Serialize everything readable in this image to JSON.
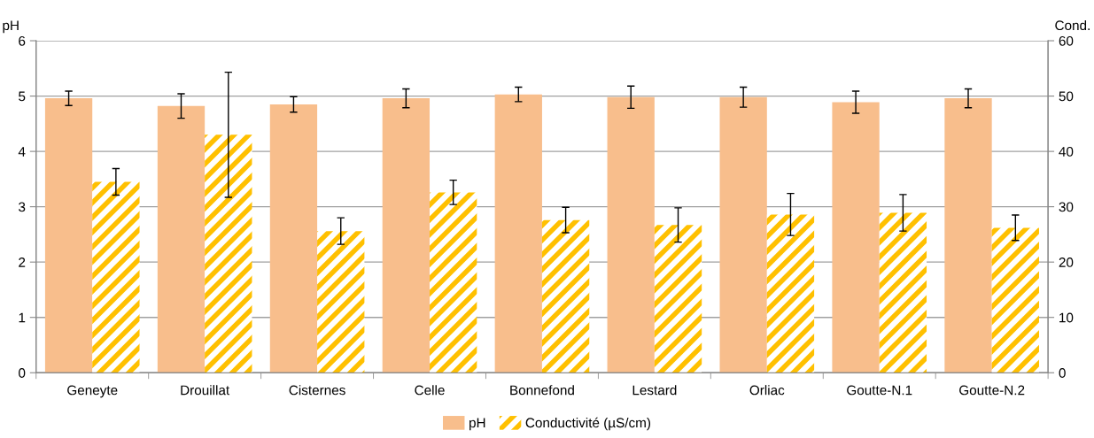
{
  "chart_data": {
    "type": "bar",
    "categories": [
      "Geneyte",
      "Drouillat",
      "Cisternes",
      "Celle",
      "Bonnefond",
      "Lestard",
      "Orliac",
      "Goutte-N.1",
      "Goutte-N.2"
    ],
    "ylabel": "pH",
    "y2label": "Cond.",
    "series": [
      {
        "name": "pH",
        "color": "#f8be8c",
        "values": [
          4.96,
          4.82,
          4.85,
          4.96,
          5.03,
          4.98,
          4.98,
          4.89,
          4.96
        ],
        "errors": [
          0.13,
          0.22,
          0.14,
          0.17,
          0.13,
          0.2,
          0.18,
          0.2,
          0.17
        ]
      },
      {
        "name": "Conductivité (µS/cm)",
        "color": "#ffc000",
        "axis": "y2",
        "values": [
          34.5,
          43.0,
          25.6,
          32.6,
          27.6,
          26.7,
          28.6,
          28.9,
          26.2
        ],
        "errors": [
          2.4,
          11.3,
          2.4,
          2.2,
          2.3,
          3.1,
          3.8,
          3.3,
          2.3
        ]
      }
    ],
    "ylim": [
      0,
      6
    ],
    "yticks": [
      0,
      1,
      2,
      3,
      4,
      5,
      6
    ],
    "y2lim": [
      0,
      60
    ],
    "y2ticks": [
      0,
      10,
      20,
      30,
      40,
      50,
      60
    ],
    "grid": "y",
    "legend": "bottom"
  }
}
